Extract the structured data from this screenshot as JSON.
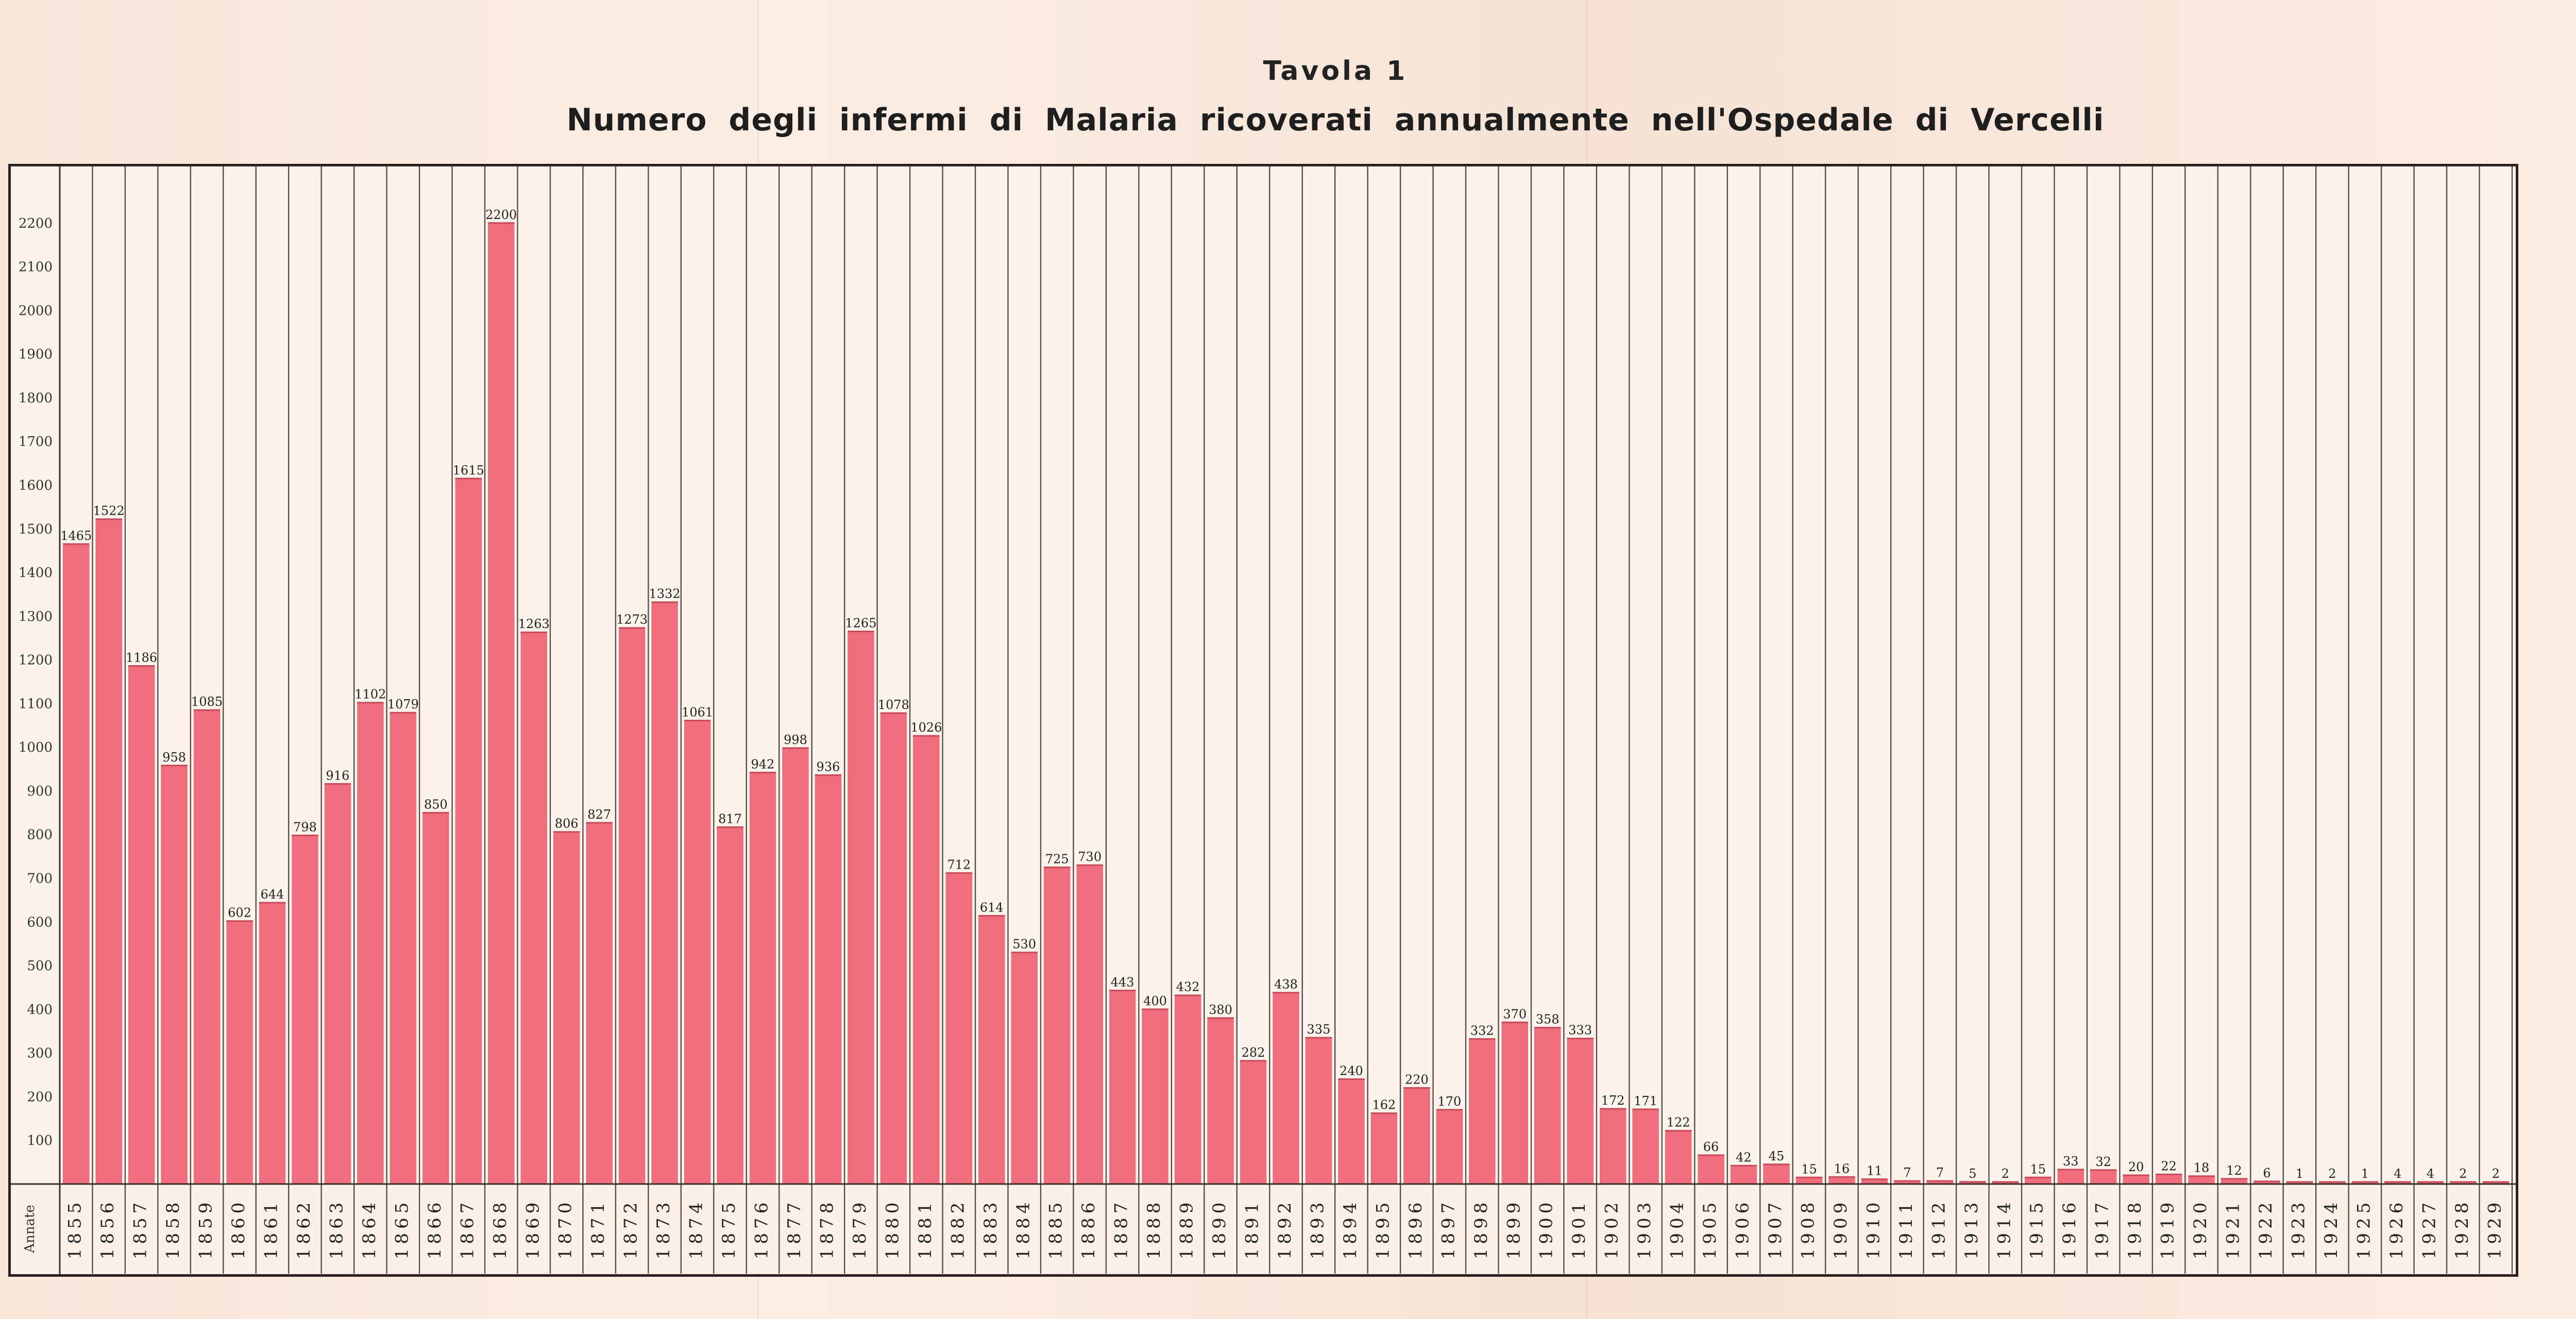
{
  "page": {
    "tavola": "Tavola 1",
    "title": "Numero degli infermi di Malaria ricoverati annualmente nell'Ospedale di Vercelli"
  },
  "chart_data": {
    "type": "bar",
    "title": "Numero degli infermi di Malaria ricoverati annualmente nell'Ospedale di Vercelli",
    "xlabel": "Annate",
    "ylabel": "",
    "ylim": [
      0,
      2300
    ],
    "yticks": [
      100,
      200,
      300,
      400,
      500,
      600,
      700,
      800,
      900,
      1000,
      1100,
      1200,
      1300,
      1400,
      1500,
      1600,
      1700,
      1800,
      1900,
      2000,
      2100,
      2200
    ],
    "grid": false,
    "bar_color": "#ef6d7c",
    "categories": [
      "1855",
      "1856",
      "1857",
      "1858",
      "1859",
      "1860",
      "1861",
      "1862",
      "1863",
      "1864",
      "1865",
      "1866",
      "1867",
      "1868",
      "1869",
      "1870",
      "1871",
      "1872",
      "1873",
      "1874",
      "1875",
      "1876",
      "1877",
      "1878",
      "1879",
      "1880",
      "1881",
      "1882",
      "1883",
      "1884",
      "1885",
      "1886",
      "1887",
      "1888",
      "1889",
      "1890",
      "1891",
      "1892",
      "1893",
      "1894",
      "1895",
      "1896",
      "1897",
      "1898",
      "1899",
      "1900",
      "1901",
      "1902",
      "1903",
      "1904",
      "1905",
      "1906",
      "1907",
      "1908",
      "1909",
      "1910",
      "1911",
      "1912",
      "1913",
      "1914",
      "1915",
      "1916",
      "1917",
      "1918",
      "1919",
      "1920",
      "1921",
      "1922",
      "1923",
      "1924",
      "1925",
      "1926",
      "1927",
      "1928",
      "1929"
    ],
    "values": [
      1465,
      1522,
      1186,
      958,
      1085,
      602,
      644,
      798,
      916,
      1102,
      1079,
      850,
      1615,
      2200,
      1263,
      806,
      827,
      1273,
      1332,
      1061,
      817,
      942,
      998,
      936,
      1265,
      1078,
      1026,
      712,
      614,
      530,
      725,
      730,
      443,
      400,
      432,
      380,
      282,
      438,
      335,
      240,
      162,
      220,
      170,
      332,
      370,
      358,
      333,
      172,
      171,
      122,
      66,
      42,
      45,
      15,
      16,
      11,
      7,
      7,
      5,
      2,
      15,
      33,
      32,
      20,
      22,
      18,
      12,
      6,
      1,
      2,
      1,
      4,
      4,
      2,
      2
    ]
  }
}
